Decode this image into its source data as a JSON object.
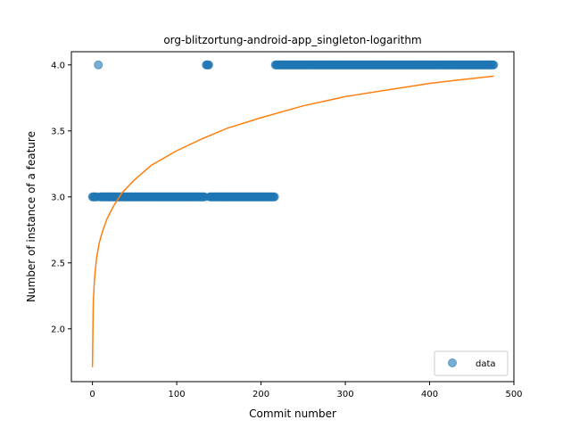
{
  "chart_data": {
    "type": "scatter",
    "title": "org-blitzortung-android-app_singleton-logarithm",
    "xlabel": "Commit number",
    "ylabel": "Number of instance of a feature",
    "xlim": [
      -25,
      500
    ],
    "ylim": [
      1.6,
      4.1
    ],
    "xticks": [
      0,
      100,
      200,
      300,
      400,
      500
    ],
    "yticks": [
      2.0,
      2.5,
      3.0,
      3.5,
      4.0
    ],
    "xtick_labels": [
      "0",
      "100",
      "200",
      "300",
      "400",
      "500"
    ],
    "ytick_labels": [
      "2.0",
      "2.5",
      "3.0",
      "3.5",
      "4.0"
    ],
    "grid": false,
    "legend": {
      "placement": "lower-right",
      "entries": [
        "data"
      ]
    },
    "colors": {
      "data": "#1f77b4",
      "fit": "#ff7f0e"
    },
    "series": [
      {
        "name": "data",
        "kind": "scatter",
        "segments": [
          {
            "y": 3,
            "x_from": 0,
            "x_to": 5
          },
          {
            "y": 4,
            "x_from": 7,
            "x_to": 7
          },
          {
            "y": 3,
            "x_from": 9,
            "x_to": 133
          },
          {
            "y": 4,
            "x_from": 135,
            "x_to": 138
          },
          {
            "y": 3,
            "x_from": 139,
            "x_to": 216
          },
          {
            "y": 4,
            "x_from": 217,
            "x_to": 476
          }
        ]
      },
      {
        "name": "fit",
        "kind": "line",
        "points": [
          [
            0,
            1.71
          ],
          [
            1,
            2.2
          ],
          [
            2,
            2.33
          ],
          [
            3,
            2.42
          ],
          [
            5,
            2.54
          ],
          [
            8,
            2.65
          ],
          [
            12,
            2.74
          ],
          [
            17,
            2.83
          ],
          [
            25,
            2.93
          ],
          [
            35,
            3.03
          ],
          [
            50,
            3.13
          ],
          [
            70,
            3.24
          ],
          [
            100,
            3.35
          ],
          [
            130,
            3.44
          ],
          [
            160,
            3.52
          ],
          [
            200,
            3.6
          ],
          [
            250,
            3.69
          ],
          [
            300,
            3.76
          ],
          [
            350,
            3.81
          ],
          [
            400,
            3.86
          ],
          [
            440,
            3.89
          ],
          [
            476,
            3.915
          ]
        ]
      }
    ]
  }
}
